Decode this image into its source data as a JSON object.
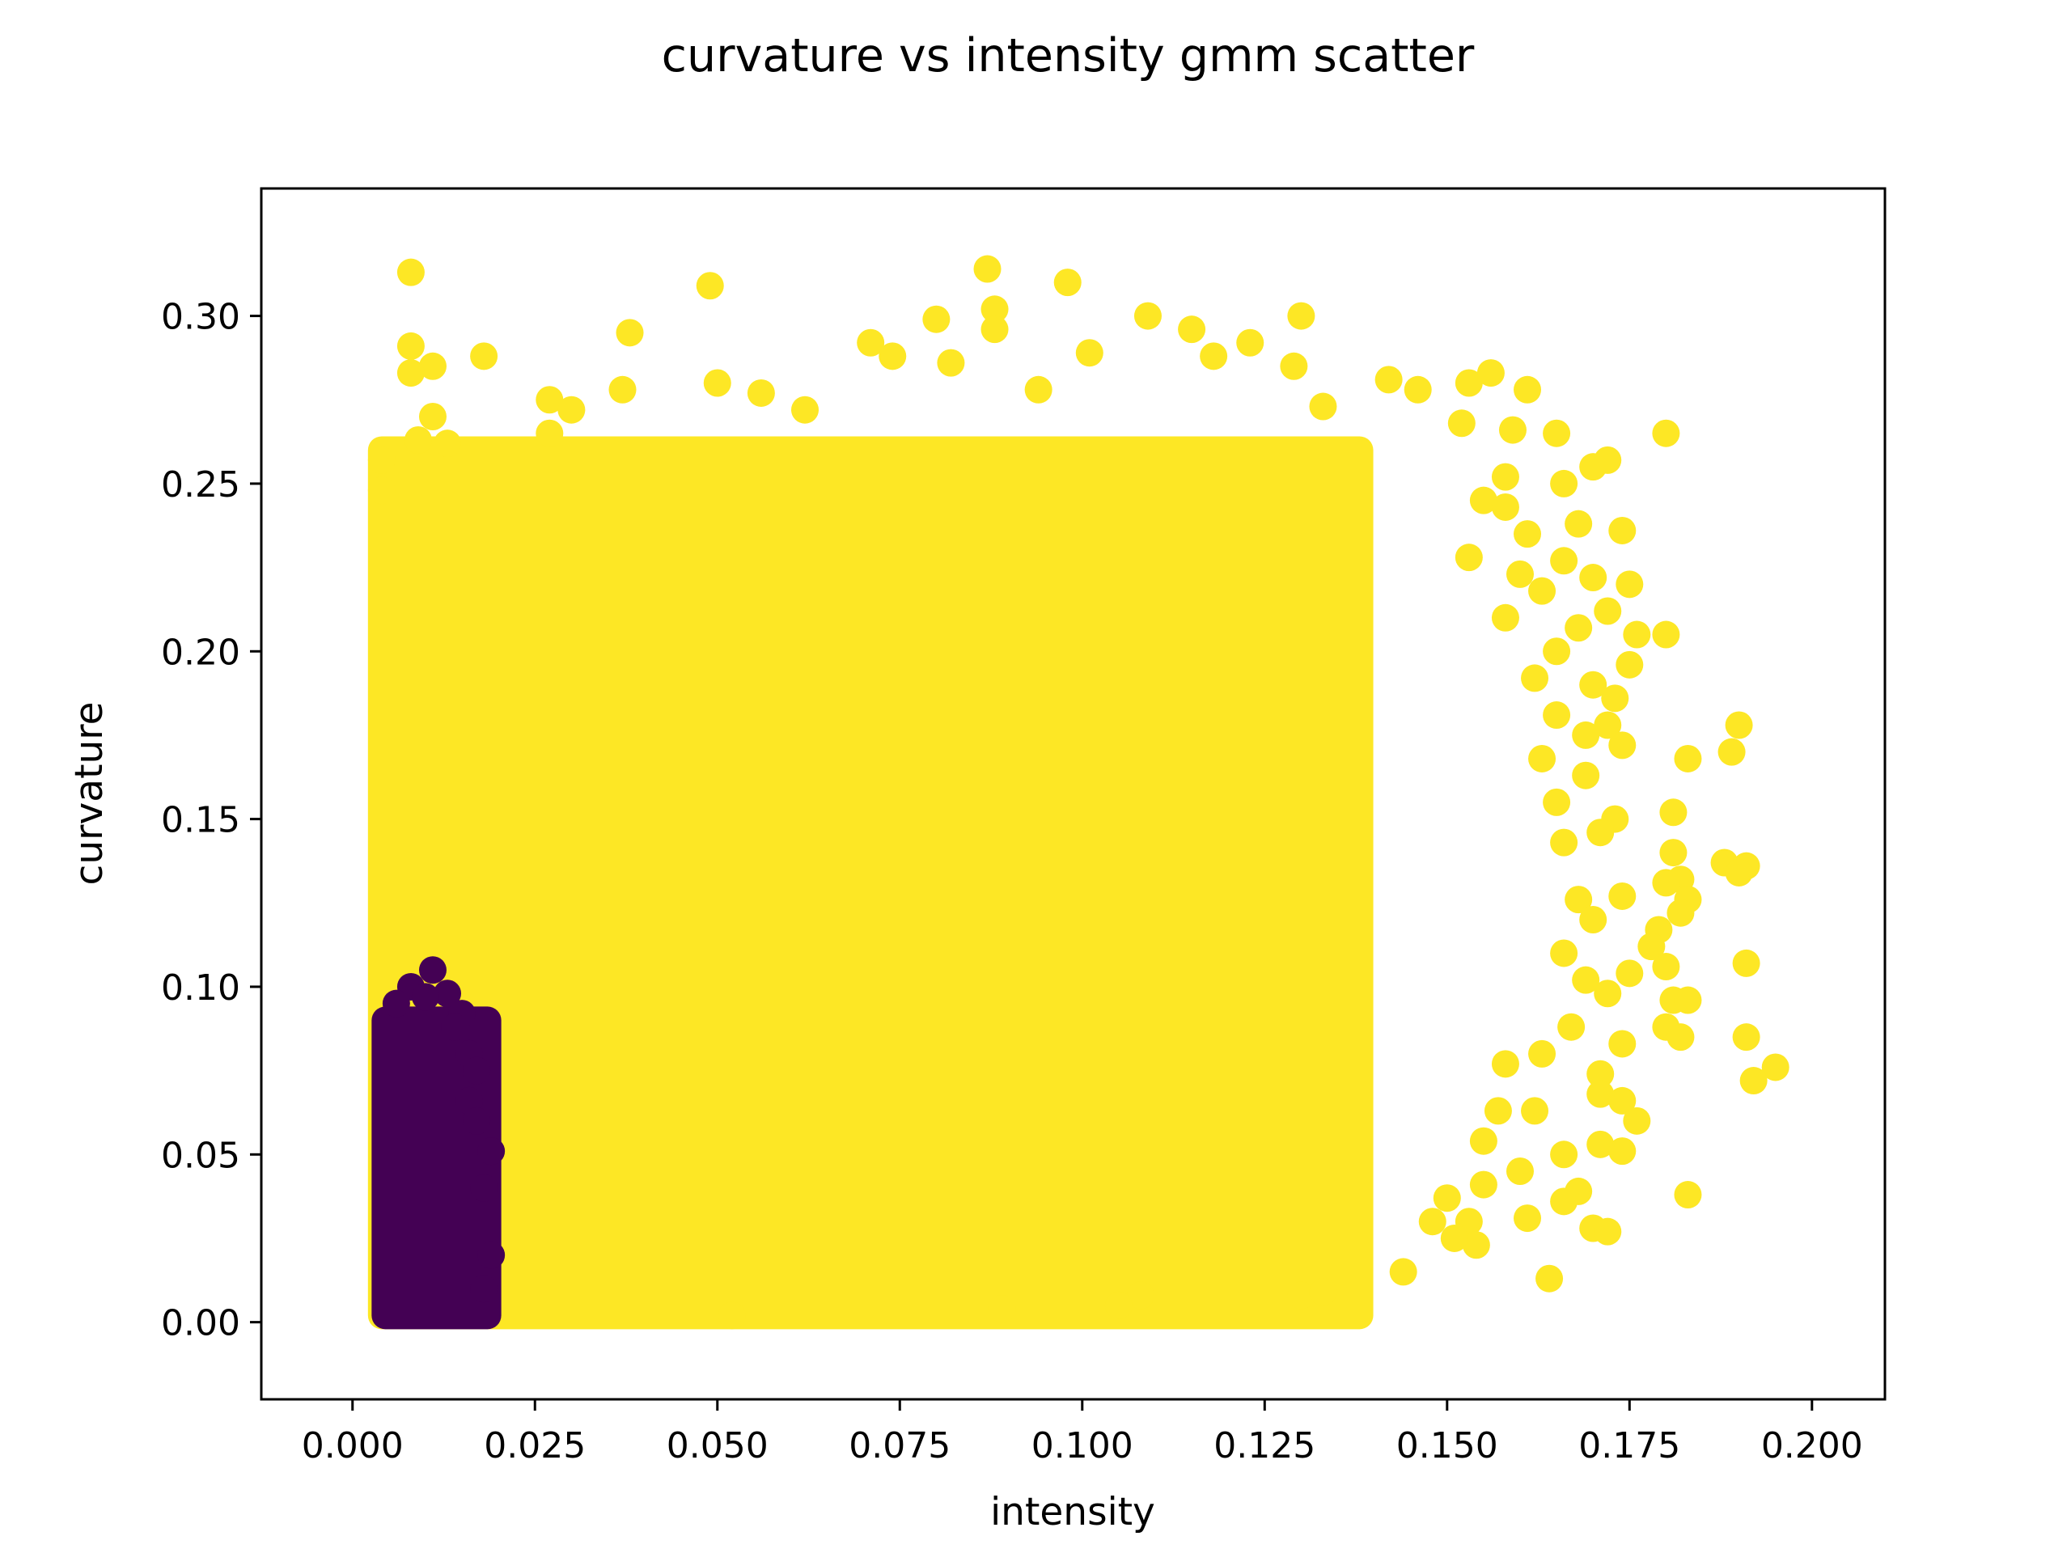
{
  "chart_data": {
    "type": "scatter",
    "title": "curvature vs intensity gmm scatter",
    "xlabel": "intensity",
    "ylabel": "curvature",
    "xlim": [
      -0.0125,
      0.21
    ],
    "ylim": [
      -0.023,
      0.338
    ],
    "xticks": [
      0.0,
      0.025,
      0.05,
      0.075,
      0.1,
      0.125,
      0.15,
      0.175,
      0.2
    ],
    "xtick_labels": [
      "0.000",
      "0.025",
      "0.050",
      "0.075",
      "0.100",
      "0.125",
      "0.150",
      "0.175",
      "0.200"
    ],
    "yticks": [
      0.0,
      0.05,
      0.1,
      0.15,
      0.2,
      0.25,
      0.3
    ],
    "ytick_labels": [
      "0.00",
      "0.05",
      "0.10",
      "0.15",
      "0.20",
      "0.25",
      "0.30"
    ],
    "grid": false,
    "legend": "none",
    "colors": {
      "cluster_0": "#440154",
      "cluster_1": "#fde725"
    },
    "clusters": [
      {
        "color": "#440154",
        "dense_region": {
          "x": [
            0.0045,
            0.0185
          ],
          "y": [
            0.002,
            0.09
          ]
        },
        "points": [
          [
            0.008,
            0.1
          ],
          [
            0.011,
            0.105
          ],
          [
            0.013,
            0.098
          ],
          [
            0.015,
            0.092
          ],
          [
            0.016,
            0.08
          ],
          [
            0.017,
            0.075
          ],
          [
            0.019,
            0.051
          ],
          [
            0.018,
            0.04
          ],
          [
            0.019,
            0.02
          ],
          [
            0.018,
            0.01
          ],
          [
            0.006,
            0.095
          ],
          [
            0.01,
            0.097
          ],
          [
            0.014,
            0.088
          ],
          [
            0.016,
            0.066
          ],
          [
            0.017,
            0.06
          ]
        ]
      },
      {
        "color": "#fde725",
        "dense_region": {
          "x": [
            0.004,
            0.138
          ],
          "y": [
            0.002,
            0.26
          ]
        },
        "points": [
          [
            0.008,
            0.313
          ],
          [
            0.049,
            0.309
          ],
          [
            0.087,
            0.314
          ],
          [
            0.098,
            0.31
          ],
          [
            0.088,
            0.302
          ],
          [
            0.109,
            0.3
          ],
          [
            0.13,
            0.3
          ],
          [
            0.038,
            0.295
          ],
          [
            0.008,
            0.291
          ],
          [
            0.071,
            0.292
          ],
          [
            0.08,
            0.299
          ],
          [
            0.115,
            0.296
          ],
          [
            0.123,
            0.292
          ],
          [
            0.088,
            0.296
          ],
          [
            0.011,
            0.285
          ],
          [
            0.018,
            0.288
          ],
          [
            0.008,
            0.283
          ],
          [
            0.037,
            0.278
          ],
          [
            0.05,
            0.28
          ],
          [
            0.074,
            0.288
          ],
          [
            0.082,
            0.286
          ],
          [
            0.101,
            0.289
          ],
          [
            0.118,
            0.288
          ],
          [
            0.129,
            0.285
          ],
          [
            0.142,
            0.281
          ],
          [
            0.153,
            0.28
          ],
          [
            0.156,
            0.283
          ],
          [
            0.161,
            0.278
          ],
          [
            0.027,
            0.275
          ],
          [
            0.056,
            0.277
          ],
          [
            0.011,
            0.27
          ],
          [
            0.03,
            0.272
          ],
          [
            0.062,
            0.272
          ],
          [
            0.094,
            0.278
          ],
          [
            0.133,
            0.273
          ],
          [
            0.146,
            0.278
          ],
          [
            0.165,
            0.265
          ],
          [
            0.18,
            0.265
          ],
          [
            0.152,
            0.268
          ],
          [
            0.159,
            0.266
          ],
          [
            0.009,
            0.263
          ],
          [
            0.027,
            0.265
          ],
          [
            0.013,
            0.262
          ],
          [
            0.004,
            0.257
          ],
          [
            0.004,
            0.248
          ],
          [
            0.17,
            0.255
          ],
          [
            0.172,
            0.257
          ],
          [
            0.166,
            0.25
          ],
          [
            0.158,
            0.252
          ],
          [
            0.155,
            0.245
          ],
          [
            0.158,
            0.243
          ],
          [
            0.168,
            0.238
          ],
          [
            0.161,
            0.235
          ],
          [
            0.174,
            0.236
          ],
          [
            0.153,
            0.228
          ],
          [
            0.16,
            0.223
          ],
          [
            0.166,
            0.227
          ],
          [
            0.17,
            0.222
          ],
          [
            0.175,
            0.22
          ],
          [
            0.163,
            0.218
          ],
          [
            0.172,
            0.212
          ],
          [
            0.158,
            0.21
          ],
          [
            0.168,
            0.207
          ],
          [
            0.176,
            0.205
          ],
          [
            0.18,
            0.205
          ],
          [
            0.165,
            0.2
          ],
          [
            0.175,
            0.196
          ],
          [
            0.17,
            0.19
          ],
          [
            0.173,
            0.186
          ],
          [
            0.162,
            0.192
          ],
          [
            0.165,
            0.181
          ],
          [
            0.172,
            0.178
          ],
          [
            0.174,
            0.172
          ],
          [
            0.169,
            0.175
          ],
          [
            0.183,
            0.168
          ],
          [
            0.19,
            0.178
          ],
          [
            0.189,
            0.17
          ],
          [
            0.163,
            0.168
          ],
          [
            0.169,
            0.163
          ],
          [
            0.181,
            0.152
          ],
          [
            0.173,
            0.15
          ],
          [
            0.165,
            0.155
          ],
          [
            0.166,
            0.143
          ],
          [
            0.171,
            0.146
          ],
          [
            0.181,
            0.14
          ],
          [
            0.188,
            0.137
          ],
          [
            0.191,
            0.136
          ],
          [
            0.19,
            0.134
          ],
          [
            0.182,
            0.132
          ],
          [
            0.18,
            0.131
          ],
          [
            0.183,
            0.126
          ],
          [
            0.168,
            0.126
          ],
          [
            0.174,
            0.127
          ],
          [
            0.17,
            0.12
          ],
          [
            0.179,
            0.117
          ],
          [
            0.182,
            0.122
          ],
          [
            0.178,
            0.112
          ],
          [
            0.18,
            0.106
          ],
          [
            0.191,
            0.107
          ],
          [
            0.175,
            0.104
          ],
          [
            0.166,
            0.11
          ],
          [
            0.169,
            0.102
          ],
          [
            0.172,
            0.098
          ],
          [
            0.181,
            0.096
          ],
          [
            0.183,
            0.096
          ],
          [
            0.18,
            0.088
          ],
          [
            0.182,
            0.085
          ],
          [
            0.174,
            0.083
          ],
          [
            0.167,
            0.088
          ],
          [
            0.191,
            0.085
          ],
          [
            0.195,
            0.076
          ],
          [
            0.192,
            0.072
          ],
          [
            0.171,
            0.074
          ],
          [
            0.163,
            0.08
          ],
          [
            0.158,
            0.077
          ],
          [
            0.171,
            0.068
          ],
          [
            0.174,
            0.066
          ],
          [
            0.176,
            0.06
          ],
          [
            0.162,
            0.063
          ],
          [
            0.157,
            0.063
          ],
          [
            0.171,
            0.053
          ],
          [
            0.174,
            0.051
          ],
          [
            0.166,
            0.05
          ],
          [
            0.155,
            0.054
          ],
          [
            0.16,
            0.045
          ],
          [
            0.166,
            0.036
          ],
          [
            0.168,
            0.039
          ],
          [
            0.183,
            0.038
          ],
          [
            0.161,
            0.031
          ],
          [
            0.17,
            0.028
          ],
          [
            0.172,
            0.027
          ],
          [
            0.155,
            0.041
          ],
          [
            0.15,
            0.037
          ],
          [
            0.153,
            0.03
          ],
          [
            0.154,
            0.023
          ],
          [
            0.151,
            0.025
          ],
          [
            0.148,
            0.03
          ],
          [
            0.144,
            0.015
          ],
          [
            0.164,
            0.013
          ],
          [
            0.13,
            0.008
          ],
          [
            0.133,
            0.009
          ],
          [
            0.108,
            0.008
          ],
          [
            0.089,
            0.004
          ],
          [
            0.105,
            0.005
          ],
          [
            0.052,
            0.002
          ]
        ]
      }
    ]
  }
}
